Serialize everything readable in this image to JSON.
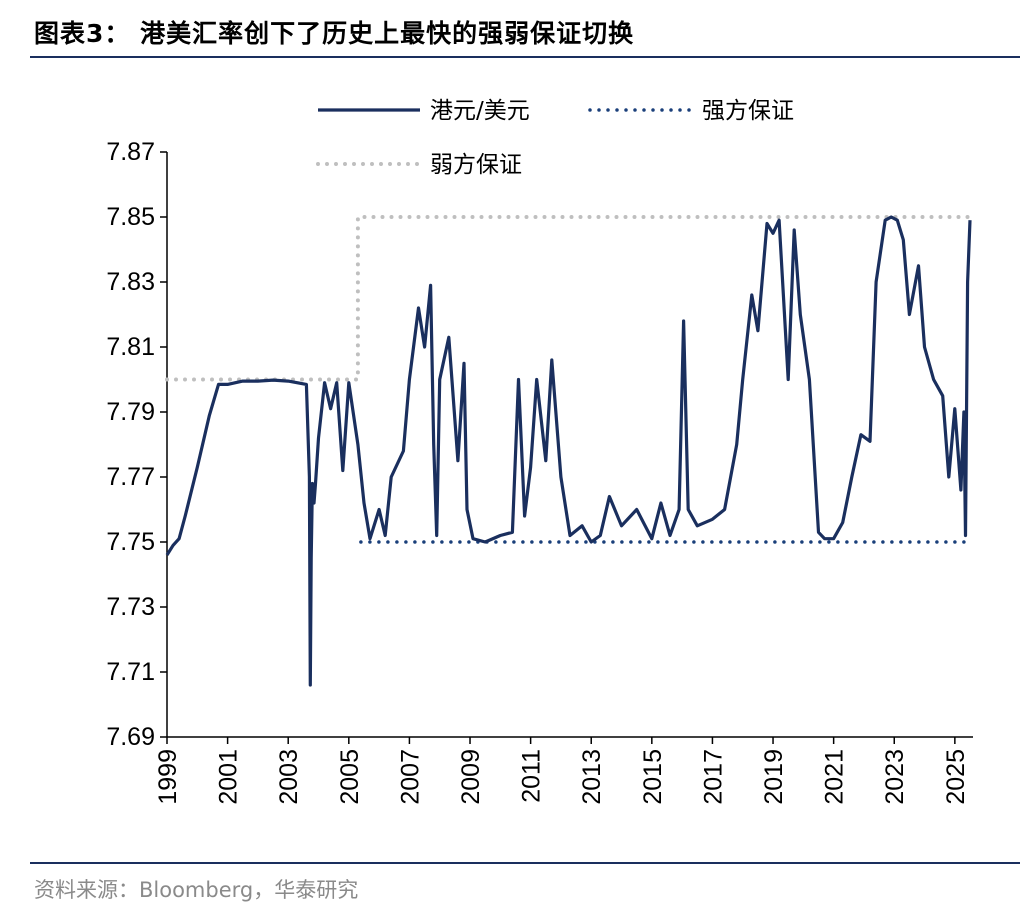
{
  "header": {
    "title": "图表3：  港美汇率创下了历史上最快的强弱保证切换"
  },
  "footer": {
    "source": "资料来源：Bloomberg，华泰研究"
  },
  "chart_data": {
    "type": "line",
    "title": "",
    "xlabel": "",
    "ylabel": "",
    "xlim": [
      1999,
      2025.5
    ],
    "ylim": [
      7.69,
      7.87
    ],
    "y_ticks": [
      "7.87",
      "7.85",
      "7.83",
      "7.81",
      "7.79",
      "7.77",
      "7.75",
      "7.73",
      "7.71",
      "7.69"
    ],
    "x_ticks": [
      "1999",
      "2001",
      "2003",
      "2005",
      "2007",
      "2009",
      "2011",
      "2013",
      "2015",
      "2017",
      "2019",
      "2021",
      "2023",
      "2025"
    ],
    "legend_placement": "top",
    "colors": {
      "hkd_usd": "#1a2f5e",
      "strong_side": "#1a3f7a",
      "weak_side": "#bfbfbf",
      "axis": "#000000"
    },
    "series": [
      {
        "name": "港元/美元",
        "style": "solid",
        "x": [
          1999.0,
          1999.2,
          1999.4,
          1999.6,
          2000.0,
          2000.4,
          2000.7,
          2001.0,
          2001.5,
          2002.0,
          2002.5,
          2003.0,
          2003.6,
          2003.7,
          2003.73,
          2003.76,
          2003.8,
          2003.85,
          2003.9,
          2004.0,
          2004.2,
          2004.4,
          2004.6,
          2004.8,
          2005.0,
          2005.3,
          2005.5,
          2005.7,
          2006.0,
          2006.2,
          2006.4,
          2006.8,
          2007.0,
          2007.3,
          2007.5,
          2007.7,
          2007.8,
          2007.9,
          2008.0,
          2008.3,
          2008.6,
          2008.8,
          2008.9,
          2009.1,
          2009.5,
          2010.0,
          2010.4,
          2010.6,
          2010.8,
          2011.0,
          2011.2,
          2011.5,
          2011.7,
          2012.0,
          2012.3,
          2012.7,
          2013.0,
          2013.3,
          2013.6,
          2014.0,
          2014.5,
          2015.0,
          2015.3,
          2015.6,
          2015.9,
          2016.05,
          2016.2,
          2016.5,
          2017.0,
          2017.4,
          2017.8,
          2018.0,
          2018.3,
          2018.5,
          2018.8,
          2019.0,
          2019.2,
          2019.5,
          2019.7,
          2019.9,
          2020.2,
          2020.5,
          2020.7,
          2021.0,
          2021.3,
          2021.6,
          2021.9,
          2022.2,
          2022.4,
          2022.7,
          2022.9,
          2023.1,
          2023.3,
          2023.5,
          2023.8,
          2024.0,
          2024.3,
          2024.6,
          2024.8,
          2025.0,
          2025.2,
          2025.3,
          2025.35,
          2025.42,
          2025.5
        ],
        "values": [
          7.746,
          7.749,
          7.751,
          7.758,
          7.773,
          7.789,
          7.7985,
          7.7985,
          7.7995,
          7.7995,
          7.7998,
          7.7995,
          7.7985,
          7.77,
          7.706,
          7.745,
          7.768,
          7.762,
          7.768,
          7.782,
          7.799,
          7.791,
          7.799,
          7.772,
          7.799,
          7.78,
          7.762,
          7.751,
          7.76,
          7.752,
          7.77,
          7.778,
          7.8,
          7.822,
          7.81,
          7.829,
          7.78,
          7.752,
          7.8,
          7.813,
          7.775,
          7.805,
          7.76,
          7.751,
          7.75,
          7.752,
          7.753,
          7.8,
          7.758,
          7.773,
          7.8,
          7.775,
          7.806,
          7.77,
          7.752,
          7.755,
          7.75,
          7.752,
          7.764,
          7.755,
          7.76,
          7.751,
          7.762,
          7.752,
          7.76,
          7.818,
          7.76,
          7.755,
          7.757,
          7.76,
          7.78,
          7.8,
          7.826,
          7.815,
          7.848,
          7.845,
          7.849,
          7.8,
          7.846,
          7.82,
          7.8,
          7.753,
          7.751,
          7.751,
          7.756,
          7.77,
          7.783,
          7.781,
          7.83,
          7.849,
          7.85,
          7.849,
          7.843,
          7.82,
          7.835,
          7.81,
          7.8,
          7.795,
          7.77,
          7.791,
          7.766,
          7.79,
          7.752,
          7.83,
          7.849
        ]
      },
      {
        "name": "强方保证",
        "style": "dotted",
        "x": [
          2005.4,
          2025.5
        ],
        "values": [
          7.75,
          7.75
        ]
      },
      {
        "name": "弱方保证",
        "style": "dotted",
        "x": [
          1999.0,
          2005.3,
          2005.3,
          2025.5
        ],
        "values": [
          7.8,
          7.8,
          7.85,
          7.85
        ]
      }
    ]
  }
}
